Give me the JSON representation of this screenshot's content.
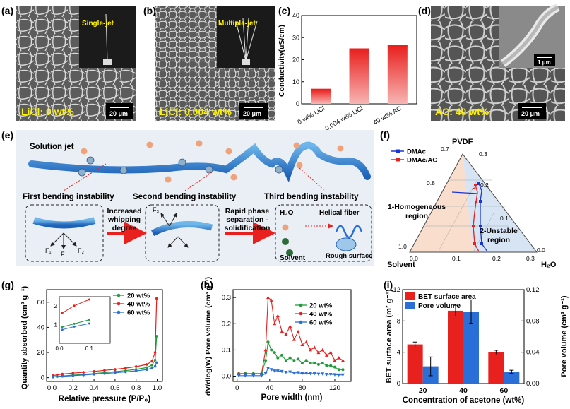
{
  "panel_labels": {
    "a": "(a)",
    "b": "(b)",
    "c": "(c)",
    "d": "(d)",
    "e": "(e)",
    "f": "(f)",
    "g": "(g)",
    "h": "(h)",
    "i": "(i)"
  },
  "panel_a": {
    "inset_label": "Single-jet",
    "caption": "LiCl:  0 wt%",
    "scale": "20 μm"
  },
  "panel_b": {
    "inset_label": "Multiple-jet",
    "caption": "LiCl:  0.004 wt%",
    "scale": "20 μm"
  },
  "panel_d": {
    "caption": "AC: 40 wt%",
    "scale": "20 μm",
    "inset_scale": "1 μm"
  },
  "panel_e": {
    "solution_jet": "Solution jet",
    "first": "First bending instability",
    "second": "Second bending instability",
    "third": "Third bending instability",
    "arrow1": [
      "Increased",
      "whipping",
      "degree"
    ],
    "arrow2": [
      "Rapid phase",
      "separation -",
      "solidification"
    ],
    "h2o": "H₂O",
    "helical": "Helical fiber",
    "rough": "Rough surface",
    "solvent": "Solvent",
    "f1": "F₁",
    "f2": "F₂",
    "f": "F",
    "f3": "F₃"
  },
  "chart_data": [
    {
      "id": "c",
      "type": "bar",
      "categories": [
        "0 wt% LiCl",
        "0.004 wt% LiCl",
        "40 wt% AC"
      ],
      "values": [
        6.5,
        24.8,
        26.3
      ],
      "ylabel": "Conductivity(uS/cm)",
      "ylim": [
        0,
        40
      ],
      "yticks": [
        0,
        10,
        20,
        30,
        40
      ],
      "color": "#e8211f"
    },
    {
      "id": "f",
      "type": "ternary",
      "top": "PVDF",
      "left": "Solvent",
      "right": "H₂O",
      "left_ticks": [
        "1.0",
        "0.8",
        "0.7"
      ],
      "right_ticks": [
        "0.3",
        "0.2",
        "0.1",
        "0.0"
      ],
      "bottom_ticks": [
        "0.0",
        "0.1",
        "0.2",
        "0.3"
      ],
      "series": [
        {
          "name": "DMAc",
          "color": "#1a35d6"
        },
        {
          "name": "DMAc/AC",
          "color": "#e8211f"
        }
      ],
      "regions": {
        "homogeneous": [
          "1-Homogeneous",
          "region"
        ],
        "unstable": [
          "2-Unstable",
          "region"
        ]
      },
      "homogeneous_color": "#f8d9c8",
      "unstable_color": "#d4e3f3"
    },
    {
      "id": "g",
      "type": "line",
      "xlabel": "Relative pressure (P/P₀)",
      "ylabel": "Quantity absorbed (cm³ g⁻¹)",
      "xlim": [
        -0.05,
        1.05
      ],
      "ylim": [
        -3,
        70
      ],
      "xticks": [
        "0.0",
        "0.2",
        "0.4",
        "0.6",
        "0.8",
        "1.0"
      ],
      "yticks": [
        "0",
        "20",
        "40",
        "60"
      ],
      "series": [
        {
          "name": "20 wt%",
          "color": "#1f9d3a",
          "x": [
            0.01,
            0.05,
            0.1,
            0.2,
            0.3,
            0.4,
            0.5,
            0.6,
            0.7,
            0.8,
            0.9,
            0.95,
            0.98,
            0.995
          ],
          "y": [
            0.7,
            1.0,
            1.4,
            2.0,
            2.6,
            3.3,
            4.0,
            4.8,
            5.6,
            6.6,
            8.0,
            10.0,
            14.0,
            33.0
          ]
        },
        {
          "name": "40 wt%",
          "color": "#e8211f",
          "x": [
            0.01,
            0.05,
            0.1,
            0.2,
            0.3,
            0.4,
            0.5,
            0.6,
            0.7,
            0.8,
            0.9,
            0.95,
            0.98,
            0.995
          ],
          "y": [
            1.6,
            2.3,
            2.9,
            3.6,
            4.3,
            5.0,
            5.8,
            6.6,
            7.6,
            8.8,
            10.5,
            13.0,
            20.0,
            63.0
          ]
        },
        {
          "name": "60 wt%",
          "color": "#2a6ed8",
          "x": [
            0.01,
            0.05,
            0.1,
            0.2,
            0.3,
            0.4,
            0.5,
            0.6,
            0.7,
            0.8,
            0.9,
            0.95,
            0.98,
            0.995
          ],
          "y": [
            0.5,
            0.8,
            1.1,
            1.6,
            2.1,
            2.7,
            3.3,
            3.9,
            4.6,
            5.4,
            6.4,
            7.5,
            9.0,
            12.0
          ]
        }
      ],
      "inset": {
        "xlim": [
          0,
          0.17
        ],
        "ylim": [
          0,
          2.5
        ],
        "xticks": [
          "0.0",
          "0.1"
        ],
        "yticks": [
          "1",
          "2"
        ]
      }
    },
    {
      "id": "h",
      "type": "line",
      "xlabel": "Pore width (nm)",
      "ylabel": "dV/dlog(W) Pore volume (cm³ g⁻¹)",
      "xlim": [
        -5,
        140
      ],
      "ylim": [
        -0.02,
        0.33
      ],
      "xticks": [
        "0",
        "40",
        "80",
        "120"
      ],
      "yticks": [
        "0.0",
        "0.1",
        "0.2",
        "0.3"
      ],
      "series": [
        {
          "name": "20 wt%",
          "color": "#1f9d3a",
          "x": [
            2,
            10,
            20,
            30,
            35,
            38,
            42,
            46,
            50,
            55,
            60,
            65,
            70,
            75,
            80,
            85,
            90,
            95,
            100,
            105,
            110,
            115,
            120,
            125,
            130
          ],
          "y": [
            0.01,
            0.01,
            0.01,
            0.01,
            0.06,
            0.13,
            0.1,
            0.09,
            0.07,
            0.08,
            0.06,
            0.07,
            0.06,
            0.065,
            0.05,
            0.06,
            0.05,
            0.05,
            0.045,
            0.05,
            0.04,
            0.04,
            0.035,
            0.025,
            0.025
          ]
        },
        {
          "name": "40 wt%",
          "color": "#e8211f",
          "x": [
            2,
            10,
            20,
            30,
            35,
            38,
            42,
            46,
            50,
            55,
            60,
            65,
            70,
            75,
            80,
            85,
            90,
            95,
            100,
            105,
            110,
            115,
            120,
            125,
            130
          ],
          "y": [
            0.01,
            0.01,
            0.01,
            0.01,
            0.1,
            0.3,
            0.29,
            0.2,
            0.23,
            0.17,
            0.16,
            0.19,
            0.14,
            0.17,
            0.12,
            0.13,
            0.1,
            0.11,
            0.09,
            0.1,
            0.08,
            0.09,
            0.06,
            0.07,
            0.06
          ]
        },
        {
          "name": "60 wt%",
          "color": "#2a6ed8",
          "x": [
            2,
            10,
            20,
            30,
            35,
            38,
            42,
            46,
            50,
            55,
            60,
            65,
            70,
            75,
            80,
            85,
            90,
            95,
            100,
            105,
            110,
            115,
            120,
            125,
            130
          ],
          "y": [
            0.002,
            0.002,
            0.002,
            0.002,
            0.01,
            0.03,
            0.025,
            0.02,
            0.02,
            0.018,
            0.015,
            0.016,
            0.012,
            0.014,
            0.01,
            0.012,
            0.01,
            0.01,
            0.008,
            0.009,
            0.007,
            0.007,
            0.006,
            0.005,
            0.005
          ]
        }
      ]
    },
    {
      "id": "i",
      "type": "bar",
      "categories": [
        "20",
        "40",
        "60"
      ],
      "xlabel": "Concentration of acetone (wt%)",
      "ylabel": "BET surface area (m² g⁻¹)",
      "ylabel2": "Pore volume (cm³ g⁻¹)",
      "ylim": [
        0,
        12
      ],
      "ylim2": [
        0,
        0.12
      ],
      "yticks": [
        "0",
        "4",
        "8",
        "12"
      ],
      "yticks2": [
        "0.00",
        "0.04",
        "0.08",
        "0.12"
      ],
      "series": [
        {
          "name": "BET surface area",
          "color": "#e8211f",
          "values": [
            5.0,
            9.3,
            4.0
          ],
          "err": [
            0.3,
            0.7,
            0.25
          ]
        },
        {
          "name": "Pore volume",
          "color": "#2a6ed8",
          "values": [
            0.022,
            0.092,
            0.015
          ],
          "err": [
            0.012,
            0.015,
            0.002
          ]
        }
      ]
    }
  ]
}
